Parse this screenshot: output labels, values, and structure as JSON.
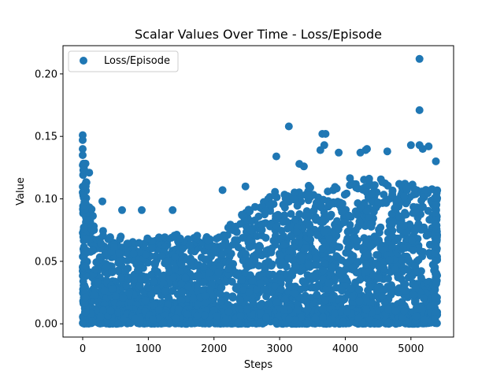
{
  "chart_data": {
    "type": "scatter",
    "title": "Scalar Values Over Time - Loss/Episode",
    "xlabel": "Steps",
    "ylabel": "Value",
    "xlim": [
      -300,
      5650
    ],
    "ylim": [
      -0.0106,
      0.2226
    ],
    "xticks": [
      0,
      1000,
      2000,
      3000,
      4000,
      5000
    ],
    "xtick_labels": [
      "0",
      "1000",
      "2000",
      "3000",
      "4000",
      "5000"
    ],
    "yticks": [
      0.0,
      0.05,
      0.1,
      0.15,
      0.2
    ],
    "ytick_labels": [
      "0.00",
      "0.05",
      "0.10",
      "0.15",
      "0.20"
    ],
    "grid": false,
    "legend": {
      "placement": "top-left",
      "entries": [
        "Loss/Episode"
      ]
    },
    "series": [
      {
        "name": "Loss/Episode",
        "color": "#1f77b4",
        "x_range": [
          0,
          5400
        ],
        "envelope": [
          [
            0,
            0.12
          ],
          [
            100,
            0.1
          ],
          [
            200,
            0.08
          ],
          [
            400,
            0.07
          ],
          [
            600,
            0.07
          ],
          [
            800,
            0.065
          ],
          [
            1000,
            0.07
          ],
          [
            1200,
            0.07
          ],
          [
            1400,
            0.072
          ],
          [
            1600,
            0.068
          ],
          [
            1800,
            0.072
          ],
          [
            2000,
            0.07
          ],
          [
            2200,
            0.078
          ],
          [
            2400,
            0.088
          ],
          [
            2600,
            0.095
          ],
          [
            2800,
            0.102
          ],
          [
            3000,
            0.108
          ],
          [
            3200,
            0.105
          ],
          [
            3400,
            0.112
          ],
          [
            3600,
            0.115
          ],
          [
            3800,
            0.11
          ],
          [
            4000,
            0.115
          ],
          [
            4200,
            0.12
          ],
          [
            4400,
            0.118
          ],
          [
            4600,
            0.115
          ],
          [
            4800,
            0.113
          ],
          [
            5000,
            0.112
          ],
          [
            5200,
            0.11
          ],
          [
            5400,
            0.108
          ]
        ],
        "notable_points": [
          {
            "x": 0,
            "y": 0.151
          },
          {
            "x": 0,
            "y": 0.147
          },
          {
            "x": 0,
            "y": 0.14
          },
          {
            "x": 0,
            "y": 0.135
          },
          {
            "x": 10,
            "y": 0.123
          },
          {
            "x": 100,
            "y": 0.121
          },
          {
            "x": 300,
            "y": 0.098
          },
          {
            "x": 600,
            "y": 0.091
          },
          {
            "x": 900,
            "y": 0.091
          },
          {
            "x": 1370,
            "y": 0.091
          },
          {
            "x": 2130,
            "y": 0.107
          },
          {
            "x": 2480,
            "y": 0.11
          },
          {
            "x": 2950,
            "y": 0.134
          },
          {
            "x": 3140,
            "y": 0.158
          },
          {
            "x": 3300,
            "y": 0.128
          },
          {
            "x": 3370,
            "y": 0.126
          },
          {
            "x": 3650,
            "y": 0.152
          },
          {
            "x": 3700,
            "y": 0.152
          },
          {
            "x": 3680,
            "y": 0.143
          },
          {
            "x": 3620,
            "y": 0.139
          },
          {
            "x": 3900,
            "y": 0.137
          },
          {
            "x": 4230,
            "y": 0.137
          },
          {
            "x": 4310,
            "y": 0.139
          },
          {
            "x": 4330,
            "y": 0.14
          },
          {
            "x": 4640,
            "y": 0.138
          },
          {
            "x": 5000,
            "y": 0.143
          },
          {
            "x": 5130,
            "y": 0.212
          },
          {
            "x": 5130,
            "y": 0.171
          },
          {
            "x": 5130,
            "y": 0.143
          },
          {
            "x": 5180,
            "y": 0.14
          },
          {
            "x": 5270,
            "y": 0.142
          },
          {
            "x": 5380,
            "y": 0.13
          }
        ]
      }
    ]
  }
}
